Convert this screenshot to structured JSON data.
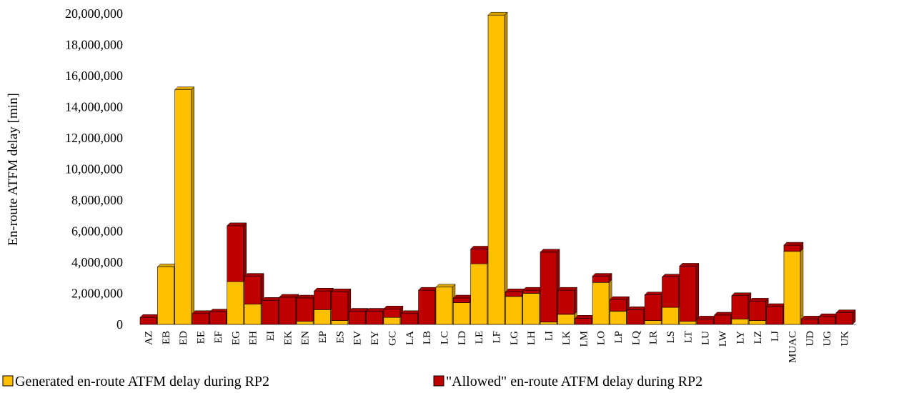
{
  "chart_data": {
    "type": "bar",
    "stacked": true,
    "three_d": true,
    "ylabel": "En-route ATFM delay [min]",
    "xlabel": "",
    "ylim": [
      0,
      20000000
    ],
    "yticks": [
      0,
      2000000,
      4000000,
      6000000,
      8000000,
      10000000,
      12000000,
      14000000,
      16000000,
      18000000,
      20000000
    ],
    "ytick_labels": [
      "0",
      "2,000,000",
      "4,000,000",
      "6,000,000",
      "8,000,000",
      "10,000,000",
      "12,000,000",
      "14,000,000",
      "16,000,000",
      "18,000,000",
      "20,000,000"
    ],
    "grid": false,
    "legend_position": "bottom",
    "categories": [
      "AZ",
      "EB",
      "ED",
      "EE",
      "EF",
      "EG",
      "EH",
      "EI",
      "EK",
      "EN",
      "EP",
      "ES",
      "EV",
      "EY",
      "GC",
      "LA",
      "LB",
      "LC",
      "LD",
      "LE",
      "LF",
      "LG",
      "LH",
      "LI",
      "LK",
      "LM",
      "LO",
      "LP",
      "LQ",
      "LR",
      "LS",
      "LT",
      "LU",
      "LW",
      "LY",
      "LZ",
      "LJ",
      "MUAC",
      "UD",
      "UG",
      "UK"
    ],
    "series": [
      {
        "name": "Generated en-route ATFM delay during RP2",
        "color": "#FFC000",
        "values": [
          0,
          3700000,
          15100000,
          0,
          0,
          2750000,
          1300000,
          0,
          0,
          200000,
          950000,
          250000,
          0,
          0,
          450000,
          0,
          0,
          2400000,
          1400000,
          3900000,
          19900000,
          1800000,
          2000000,
          150000,
          650000,
          0,
          2700000,
          850000,
          0,
          250000,
          1100000,
          200000,
          0,
          0,
          350000,
          250000,
          0,
          4700000,
          0,
          0,
          0
        ]
      },
      {
        "name": "\"Allowed\" en-route ATFM delay during RP2",
        "color": "#C00000",
        "values": [
          450000,
          0,
          0,
          700000,
          800000,
          3600000,
          1800000,
          1550000,
          1750000,
          1500000,
          1200000,
          1850000,
          850000,
          850000,
          550000,
          700000,
          2200000,
          0,
          300000,
          950000,
          0,
          300000,
          200000,
          4500000,
          1550000,
          400000,
          400000,
          750000,
          950000,
          1650000,
          1950000,
          3550000,
          350000,
          600000,
          1500000,
          1250000,
          1150000,
          400000,
          350000,
          500000,
          750000
        ]
      }
    ]
  }
}
